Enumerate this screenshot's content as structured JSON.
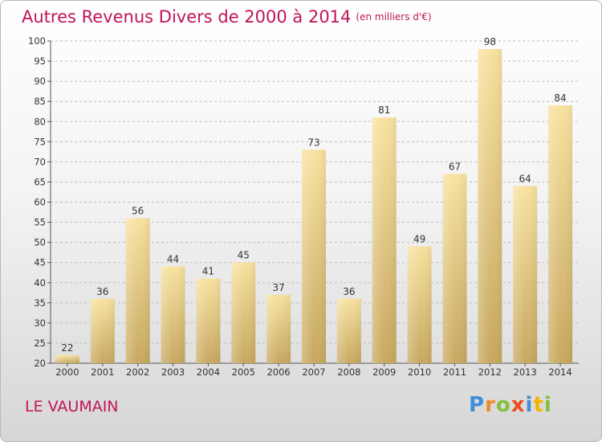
{
  "header": {
    "title": "Autres Revenus Divers de 2000 à 2014",
    "subtitle": "(en milliers d'€)"
  },
  "footer": {
    "place": "LE VAUMAIN",
    "logo_letters": [
      "P",
      "r",
      "o",
      "x",
      "i",
      "t",
      "i"
    ],
    "logo_colors": [
      "#3f8fd8",
      "#f08a24",
      "#84c13c",
      "#e94e1b",
      "#3f8fd8",
      "#f5b400",
      "#84c13c"
    ]
  },
  "colors": {
    "accent": "#c0145a",
    "bar_light": "#f8e2a0",
    "bar_dark": "#c7a860",
    "grid": "#bdbdbd"
  },
  "chart_data": {
    "type": "bar",
    "categories": [
      "2000",
      "2001",
      "2002",
      "2003",
      "2004",
      "2005",
      "2006",
      "2007",
      "2008",
      "2009",
      "2010",
      "2011",
      "2012",
      "2013",
      "2014"
    ],
    "values": [
      22,
      36,
      56,
      44,
      41,
      45,
      37,
      73,
      36,
      81,
      49,
      67,
      98,
      64,
      84
    ],
    "yticks": [
      20,
      25,
      30,
      35,
      40,
      45,
      50,
      55,
      60,
      65,
      70,
      75,
      80,
      85,
      90,
      95,
      100
    ],
    "ylim": [
      20,
      100
    ],
    "grid": "horizontal dashed",
    "title": "Autres Revenus Divers de 2000 à 2014",
    "subtitle": "(en milliers d'€)"
  }
}
